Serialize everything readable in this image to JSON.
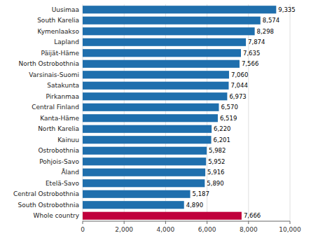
{
  "chart_data": {
    "type": "bar",
    "orientation": "horizontal",
    "categories": [
      "Whole country",
      "South Ostrobothnia",
      "Central Ostrobothnia",
      "Etelä-Savo",
      "Åland",
      "Pohjois-Savo",
      "Ostrobothnia",
      "Kainuu",
      "North Karelia",
      "Kanta-Häme",
      "Central Finland",
      "Pirkanmaa",
      "Satakunta",
      "Varsinais-Suomi",
      "North Ostrobothnia",
      "Päijät-Häme",
      "Lapland",
      "Kymenlaakso",
      "South Karelia",
      "Uusimaa"
    ],
    "values": [
      7666,
      4890,
      5187,
      5890,
      5916,
      5952,
      5982,
      6201,
      6220,
      6519,
      6570,
      6973,
      7044,
      7060,
      7566,
      7635,
      7874,
      8298,
      8574,
      9335
    ],
    "value_labels": [
      "7,666",
      "4,890",
      "5,187",
      "5,890",
      "5,916",
      "5,952",
      "5,982",
      "6,201",
      "6,220",
      "6,519",
      "6,570",
      "6,973",
      "7,044",
      "7,060",
      "7,566",
      "7,635",
      "7,874",
      "8,298",
      "8,574",
      "9,335"
    ],
    "colors": [
      "#c0003c",
      "#1f6fad",
      "#1f6fad",
      "#1f6fad",
      "#1f6fad",
      "#1f6fad",
      "#1f6fad",
      "#1f6fad",
      "#1f6fad",
      "#1f6fad",
      "#1f6fad",
      "#1f6fad",
      "#1f6fad",
      "#1f6fad",
      "#1f6fad",
      "#1f6fad",
      "#1f6fad",
      "#1f6fad",
      "#1f6fad",
      "#1f6fad"
    ],
    "xlim": [
      0,
      10000
    ],
    "xticks": [
      0,
      {
        "value": 2000,
        "label": "2,000"
      },
      {
        "value": 4000,
        "label": "4,000"
      },
      {
        "value": 6000,
        "label": "6,000"
      },
      {
        "value": 8000,
        "label": "8,000"
      },
      {
        "value": 10000,
        "label": "10,000"
      }
    ],
    "grid": true,
    "data_labels": true
  }
}
